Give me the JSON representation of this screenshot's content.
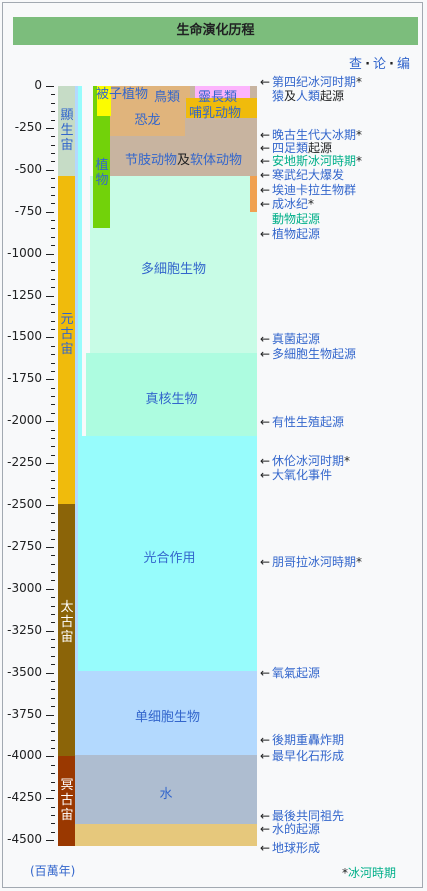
{
  "title": "生命演化历程",
  "nav": {
    "view": "查",
    "talk": "论",
    "edit": "编"
  },
  "axis": {
    "ticks": [
      "0",
      "-250",
      "-500",
      "-750",
      "-1000",
      "-1250",
      "-1500",
      "-1750",
      "-2000",
      "-2250",
      "-2500",
      "-2750",
      "-3000",
      "-3250",
      "-3500",
      "-3750",
      "-4000",
      "-4250",
      "-4500"
    ],
    "unit": "(百萬年)"
  },
  "eons": {
    "phanerozoic": "顯生宙",
    "proterozoic": "元古宙",
    "archean": "太古宙",
    "hadean": "冥古宙"
  },
  "regions": {
    "water": "水",
    "single_cell": "单细胞生物",
    "photosynthesis": "光合作用",
    "eukaryotes": "真核生物",
    "multicellular": "多細胞生物",
    "arthropods_a": "节肢动物",
    "arthropods_and": "及",
    "arthropods_b": "软体动物",
    "plants": "植物",
    "dinosaurs": "恐龙",
    "angiosperms": "被子植物",
    "birds": "鳥類",
    "primates": "靈長類",
    "mammals": "哺乳动物"
  },
  "events": [
    {
      "text": "第四纪冰河时期",
      "star": "*",
      "style": "blue"
    },
    {
      "text_a": "猿",
      "text_b": "及",
      "text_c": "人類",
      "text_d": "起源"
    },
    {
      "text": "晚古生代大冰期",
      "star": "*",
      "style": "blue"
    },
    {
      "text_a": "四足類",
      "text_b": "起源"
    },
    {
      "text": "安地斯冰河時期",
      "star": "*",
      "style": "green"
    },
    {
      "text": "寒武纪大爆发",
      "style": "blue"
    },
    {
      "text": "埃迪卡拉生物群",
      "style": "blue"
    },
    {
      "text": "成冰纪",
      "star": "*",
      "style": "blue"
    },
    {
      "text": "動物起源",
      "style": "green"
    },
    {
      "text": "植物起源",
      "style": "blue"
    },
    {
      "text": "真菌起源",
      "style": "blue"
    },
    {
      "text": "多細胞生物起源",
      "style": "blue"
    },
    {
      "text": "有性生殖起源",
      "style": "blue"
    },
    {
      "text": "休伦冰河时期",
      "star": "*",
      "style": "blue"
    },
    {
      "text": "大氧化事件",
      "style": "blue"
    },
    {
      "text": "朋哥拉冰河時期",
      "star": "*",
      "style": "blue"
    },
    {
      "text": "氧氣起源",
      "style": "blue"
    },
    {
      "text": "後期重轟炸期",
      "style": "blue"
    },
    {
      "text": "最早化石形成",
      "style": "blue"
    },
    {
      "text": "最後共同祖先",
      "style": "blue"
    },
    {
      "text": "水的起源",
      "style": "blue"
    },
    {
      "text": "地球形成",
      "style": "blue"
    }
  ],
  "legend": {
    "star": "*",
    "text": "冰河時期"
  },
  "colors": {
    "header": "#7cbd7c",
    "phanerozoic": "#c6dcc6",
    "proterozoic": "#f0bb0c",
    "archean": "#8b6408",
    "hadean": "#9a3800",
    "water": "#aebdd0",
    "single_cell": "#b3d9fe",
    "photosynthesis": "#97fcfc",
    "eukaryotes": "#adfce0",
    "multicellular": "#c8fce6",
    "arthropods": "#c8b4a0",
    "plants": "#72d20a",
    "dinosaurs": "#e0b47c",
    "angiosperms": "#fcfc00",
    "primates": "#fcb4fc",
    "earth": "#e6c87c"
  }
}
